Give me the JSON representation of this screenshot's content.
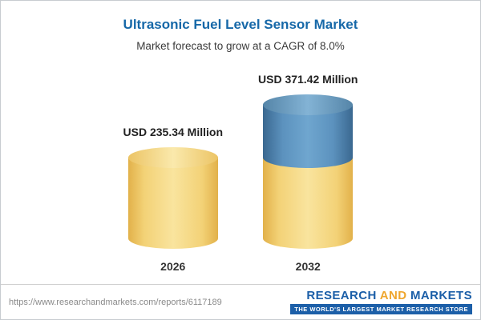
{
  "chart": {
    "title": "Ultrasonic Fuel Level Sensor Market",
    "subtitle": "Market forecast to grow at a CAGR of 8.0%"
  },
  "chart_data": {
    "type": "bar",
    "title": "Ultrasonic Fuel Level Sensor Market",
    "subtitle": "Market forecast to grow at a CAGR of 8.0%",
    "categories": [
      "2026",
      "2032"
    ],
    "values": [
      235.34,
      371.42
    ],
    "value_labels": [
      "USD 235.34 Million",
      "USD 371.42 Million"
    ],
    "unit": "USD Million",
    "cagr": "8.0%",
    "legend_position": "none",
    "grid": false,
    "colors": {
      "base_bar": "#f3d277",
      "growth_segment": "#5c92be",
      "title": "#1668a8"
    },
    "note": "3D cylinder bars; 2032 bar shows the 2026 base value in yellow and the growth portion in blue"
  },
  "bars": [
    {
      "year": "2026",
      "label": "USD 235.34 Million",
      "value": 235.34
    },
    {
      "year": "2032",
      "label": "USD 371.42 Million",
      "value": 371.42
    }
  ],
  "footer": {
    "url": "https://www.researchandmarkets.com/reports/6117189",
    "logo": {
      "part1": "RESEARCH",
      "part2": "AND",
      "part3": "MARKETS",
      "tagline": "THE WORLD'S LARGEST MARKET RESEARCH STORE"
    }
  }
}
